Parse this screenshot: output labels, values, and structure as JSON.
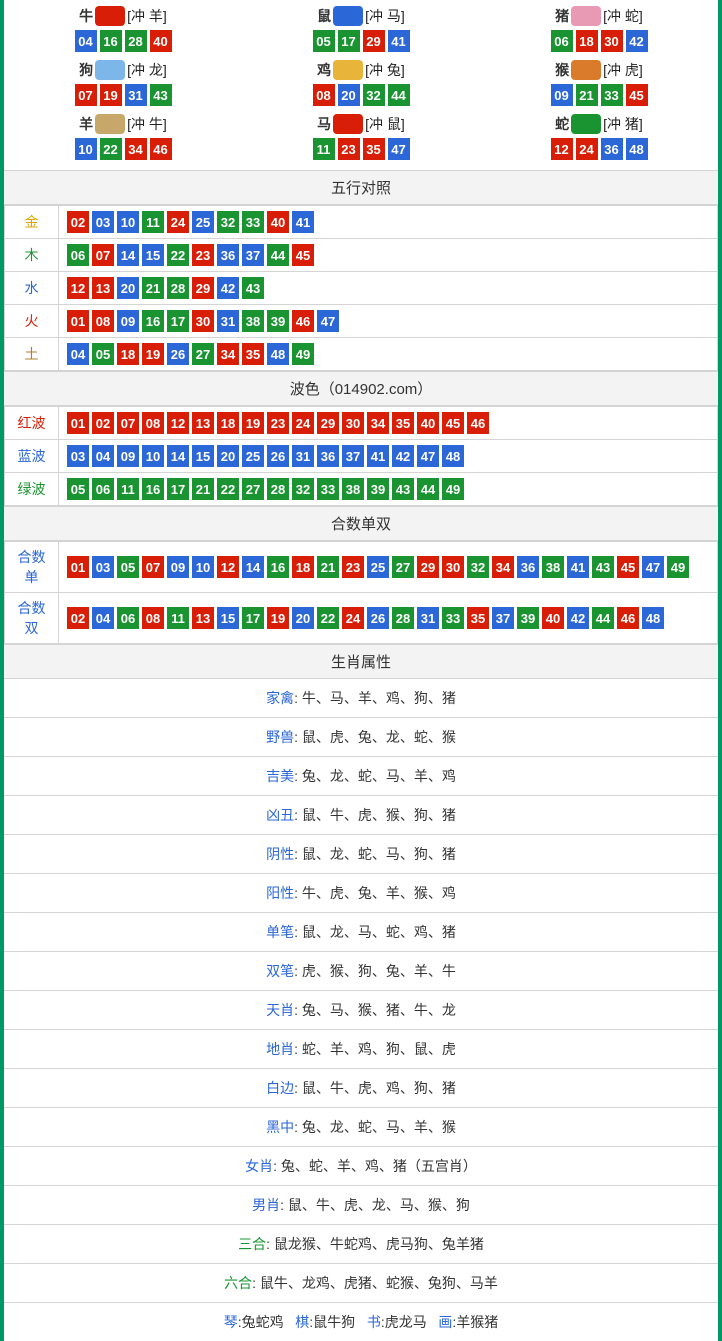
{
  "colors": {
    "red": "#d81e06",
    "blue": "#2b67d6",
    "green": "#1a9431",
    "border": "#009966"
  },
  "ball_colors": {
    "01": "red",
    "02": "red",
    "07": "red",
    "08": "red",
    "12": "red",
    "13": "red",
    "18": "red",
    "19": "red",
    "23": "red",
    "24": "red",
    "29": "red",
    "30": "red",
    "34": "red",
    "35": "red",
    "40": "red",
    "45": "red",
    "46": "red",
    "03": "blue",
    "04": "blue",
    "09": "blue",
    "10": "blue",
    "14": "blue",
    "15": "blue",
    "20": "blue",
    "25": "blue",
    "26": "blue",
    "31": "blue",
    "36": "blue",
    "37": "blue",
    "41": "blue",
    "42": "blue",
    "47": "blue",
    "48": "blue",
    "05": "green",
    "06": "green",
    "11": "green",
    "16": "green",
    "17": "green",
    "21": "green",
    "22": "green",
    "27": "green",
    "28": "green",
    "32": "green",
    "33": "green",
    "38": "green",
    "39": "green",
    "43": "green",
    "44": "green",
    "49": "green"
  },
  "zodiac": [
    {
      "name": "牛",
      "conflict": "[冲 羊]",
      "icon_color": "#d81e06",
      "nums": [
        "04",
        "16",
        "28",
        "40"
      ]
    },
    {
      "name": "鼠",
      "conflict": "[冲 马]",
      "icon_color": "#2b67d6",
      "nums": [
        "05",
        "17",
        "29",
        "41"
      ]
    },
    {
      "name": "猪",
      "conflict": "[冲 蛇]",
      "icon_color": "#e89ab5",
      "nums": [
        "06",
        "18",
        "30",
        "42"
      ]
    },
    {
      "name": "狗",
      "conflict": "[冲 龙]",
      "icon_color": "#7db6e8",
      "nums": [
        "07",
        "19",
        "31",
        "43"
      ]
    },
    {
      "name": "鸡",
      "conflict": "[冲 兔]",
      "icon_color": "#e8b43a",
      "nums": [
        "08",
        "20",
        "32",
        "44"
      ]
    },
    {
      "name": "猴",
      "conflict": "[冲 虎]",
      "icon_color": "#d97b2b",
      "nums": [
        "09",
        "21",
        "33",
        "45"
      ]
    },
    {
      "name": "羊",
      "conflict": "[冲 牛]",
      "icon_color": "#c7a86a",
      "nums": [
        "10",
        "22",
        "34",
        "46"
      ]
    },
    {
      "name": "马",
      "conflict": "[冲 鼠]",
      "icon_color": "#d81e06",
      "nums": [
        "11",
        "23",
        "35",
        "47"
      ]
    },
    {
      "name": "蛇",
      "conflict": "[冲 猪]",
      "icon_color": "#1a9431",
      "nums": [
        "12",
        "24",
        "36",
        "48"
      ]
    }
  ],
  "sections": {
    "wuxing_title": "五行对照",
    "bose_title": "波色（014902.com）",
    "heshu_title": "合数单双",
    "shuxing_title": "生肖属性"
  },
  "wuxing": [
    {
      "label": "金",
      "class": "c-gold",
      "nums": [
        "02",
        "03",
        "10",
        "11",
        "24",
        "25",
        "32",
        "33",
        "40",
        "41"
      ]
    },
    {
      "label": "木",
      "class": "c-wood",
      "nums": [
        "06",
        "07",
        "14",
        "15",
        "22",
        "23",
        "36",
        "37",
        "44",
        "45"
      ]
    },
    {
      "label": "水",
      "class": "c-water",
      "nums": [
        "12",
        "13",
        "20",
        "21",
        "28",
        "29",
        "42",
        "43"
      ]
    },
    {
      "label": "火",
      "class": "c-fire",
      "nums": [
        "01",
        "08",
        "09",
        "16",
        "17",
        "30",
        "31",
        "38",
        "39",
        "46",
        "47"
      ]
    },
    {
      "label": "土",
      "class": "c-earth",
      "nums": [
        "04",
        "05",
        "18",
        "19",
        "26",
        "27",
        "34",
        "35",
        "48",
        "49"
      ]
    }
  ],
  "bose": [
    {
      "label": "红波",
      "class": "c-red",
      "nums": [
        "01",
        "02",
        "07",
        "08",
        "12",
        "13",
        "18",
        "19",
        "23",
        "24",
        "29",
        "30",
        "34",
        "35",
        "40",
        "45",
        "46"
      ]
    },
    {
      "label": "蓝波",
      "class": "c-blue",
      "nums": [
        "03",
        "04",
        "09",
        "10",
        "14",
        "15",
        "20",
        "25",
        "26",
        "31",
        "36",
        "37",
        "41",
        "42",
        "47",
        "48"
      ]
    },
    {
      "label": "绿波",
      "class": "c-green",
      "nums": [
        "05",
        "06",
        "11",
        "16",
        "17",
        "21",
        "22",
        "27",
        "28",
        "32",
        "33",
        "38",
        "39",
        "43",
        "44",
        "49"
      ]
    }
  ],
  "heshu": [
    {
      "label": "合数单",
      "class": "c-blue",
      "nums": [
        "01",
        "03",
        "05",
        "07",
        "09",
        "10",
        "12",
        "14",
        "16",
        "18",
        "21",
        "23",
        "25",
        "27",
        "29",
        "30",
        "32",
        "34",
        "36",
        "38",
        "41",
        "43",
        "45",
        "47",
        "49"
      ]
    },
    {
      "label": "合数双",
      "class": "c-blue",
      "nums": [
        "02",
        "04",
        "06",
        "08",
        "11",
        "13",
        "15",
        "17",
        "19",
        "20",
        "22",
        "24",
        "26",
        "28",
        "31",
        "33",
        "35",
        "37",
        "39",
        "40",
        "42",
        "44",
        "46",
        "48"
      ]
    }
  ],
  "shuxing": [
    {
      "key": "家禽",
      "val": "牛、马、羊、鸡、狗、猪"
    },
    {
      "key": "野兽",
      "val": "鼠、虎、兔、龙、蛇、猴"
    },
    {
      "key": "吉美",
      "val": "兔、龙、蛇、马、羊、鸡"
    },
    {
      "key": "凶丑",
      "val": "鼠、牛、虎、猴、狗、猪"
    },
    {
      "key": "阴性",
      "val": "鼠、龙、蛇、马、狗、猪"
    },
    {
      "key": "阳性",
      "val": "牛、虎、兔、羊、猴、鸡"
    },
    {
      "key": "单笔",
      "val": "鼠、龙、马、蛇、鸡、猪"
    },
    {
      "key": "双笔",
      "val": "虎、猴、狗、兔、羊、牛"
    },
    {
      "key": "天肖",
      "val": "兔、马、猴、猪、牛、龙"
    },
    {
      "key": "地肖",
      "val": "蛇、羊、鸡、狗、鼠、虎"
    },
    {
      "key": "白边",
      "val": "鼠、牛、虎、鸡、狗、猪"
    },
    {
      "key": "黑中",
      "val": "兔、龙、蛇、马、羊、猴"
    },
    {
      "key": "女肖",
      "val": "兔、蛇、羊、鸡、猪（五宫肖）"
    },
    {
      "key": "男肖",
      "val": "鼠、牛、虎、龙、马、猴、狗"
    },
    {
      "key": "三合",
      "val": "鼠龙猴、牛蛇鸡、虎马狗、兔羊猪",
      "key_class": "c-green"
    },
    {
      "key": "六合",
      "val": "鼠牛、龙鸡、虎猪、蛇猴、兔狗、马羊",
      "key_class": "c-green"
    }
  ],
  "bottom_line_parts": [
    {
      "k": "琴",
      "v": "兔蛇鸡"
    },
    {
      "k": "棋",
      "v": "鼠牛狗"
    },
    {
      "k": "书",
      "v": "虎龙马"
    },
    {
      "k": "画",
      "v": "羊猴猪"
    }
  ]
}
